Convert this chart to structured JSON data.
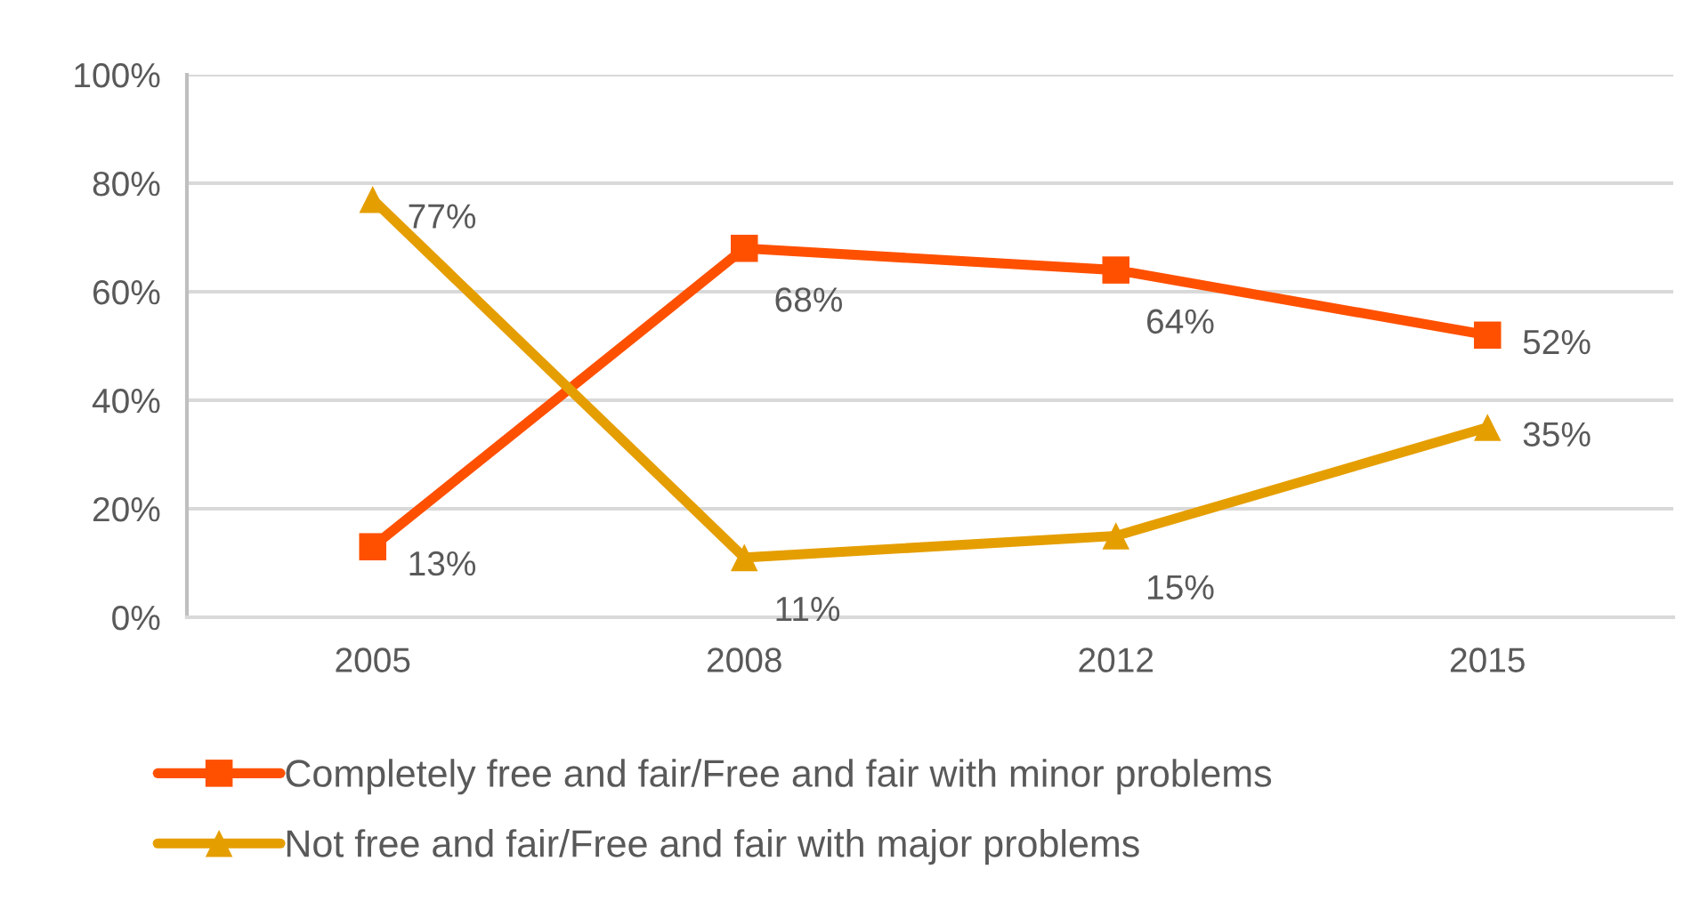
{
  "chart_data": {
    "type": "line",
    "categories": [
      "2005",
      "2008",
      "2012",
      "2015"
    ],
    "series": [
      {
        "name": "Completely free and fair/Free and fair with minor problems",
        "color": "#ff5000",
        "marker": "square",
        "values": [
          13,
          68,
          64,
          52
        ],
        "value_labels": [
          "13%",
          "68%",
          "64%",
          "52%"
        ]
      },
      {
        "name": "Not free and fair/Free and fair with major problems",
        "color": "#e59e00",
        "marker": "triangle",
        "values": [
          77,
          11,
          15,
          35
        ],
        "value_labels": [
          "77%",
          "11%",
          "15%",
          "35%"
        ]
      }
    ],
    "ylim": [
      0,
      100
    ],
    "yticks": [
      {
        "value": 0,
        "label": "0%"
      },
      {
        "value": 20,
        "label": "20%"
      },
      {
        "value": 40,
        "label": "40%"
      },
      {
        "value": 60,
        "label": "60%"
      },
      {
        "value": 80,
        "label": "80%"
      },
      {
        "value": 100,
        "label": "100%"
      }
    ],
    "grid": "y",
    "legend": "bottom"
  }
}
